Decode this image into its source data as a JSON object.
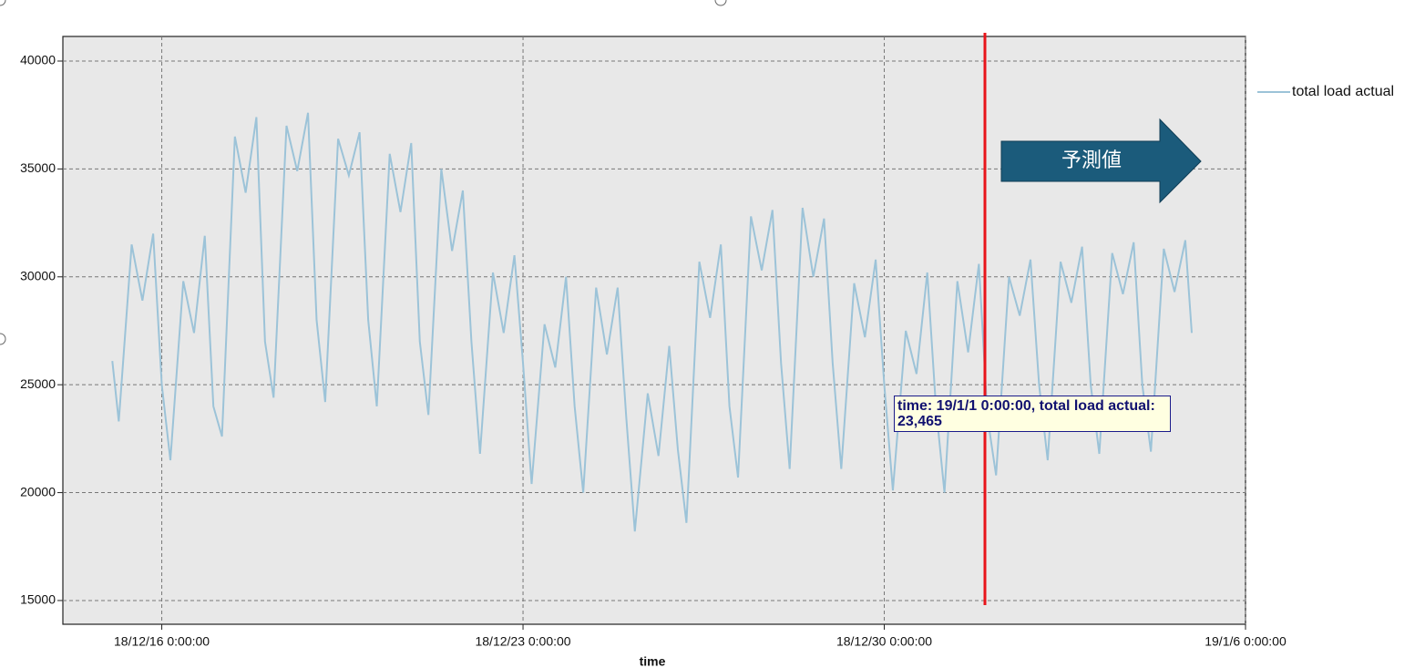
{
  "chart_data": {
    "type": "line",
    "x_label": "time",
    "xlim": [
      "18/12/14 2:00:00",
      "19/1/6 0:00:00"
    ],
    "xticks": [
      "18/12/16 0:00:00",
      "18/12/23 0:00:00",
      "18/12/30 0:00:00",
      "19/1/6 0:00:00"
    ],
    "ylim": [
      13900,
      41140
    ],
    "yticks": [
      15000,
      20000,
      25000,
      30000,
      35000,
      40000
    ],
    "grid": true,
    "legend": "right",
    "series": [
      {
        "name": "total load actual",
        "color": "#9cc3d8",
        "x": [
          "18/12/15 1:00:00",
          "18/12/15 4:00:00",
          "18/12/15 10:00:00",
          "18/12/15 15:00:00",
          "18/12/15 20:00:00",
          "18/12/16 0:00:00",
          "18/12/16 4:00:00",
          "18/12/16 10:00:00",
          "18/12/16 15:00:00",
          "18/12/16 20:00:00",
          "18/12/17 0:00:00",
          "18/12/17 4:00:00",
          "18/12/17 10:00:00",
          "18/12/17 15:00:00",
          "18/12/17 20:00:00",
          "18/12/18 0:00:00",
          "18/12/18 4:00:00",
          "18/12/18 10:00:00",
          "18/12/18 15:00:00",
          "18/12/18 20:00:00",
          "18/12/19 0:00:00",
          "18/12/19 4:00:00",
          "18/12/19 10:00:00",
          "18/12/19 15:00:00",
          "18/12/19 20:00:00",
          "18/12/20 0:00:00",
          "18/12/20 4:00:00",
          "18/12/20 10:00:00",
          "18/12/20 15:00:00",
          "18/12/20 20:00:00",
          "18/12/21 0:00:00",
          "18/12/21 4:00:00",
          "18/12/21 10:00:00",
          "18/12/21 15:00:00",
          "18/12/21 20:00:00",
          "18/12/22 0:00:00",
          "18/12/22 4:00:00",
          "18/12/22 10:00:00",
          "18/12/22 15:00:00",
          "18/12/22 20:00:00",
          "18/12/23 0:00:00",
          "18/12/23 4:00:00",
          "18/12/23 10:00:00",
          "18/12/23 15:00:00",
          "18/12/23 20:00:00",
          "18/12/24 0:00:00",
          "18/12/24 4:00:00",
          "18/12/24 10:00:00",
          "18/12/24 15:00:00",
          "18/12/24 20:00:00",
          "18/12/25 0:00:00",
          "18/12/25 4:00:00",
          "18/12/25 10:00:00",
          "18/12/25 15:00:00",
          "18/12/25 20:00:00",
          "18/12/26 0:00:00",
          "18/12/26 4:00:00",
          "18/12/26 10:00:00",
          "18/12/26 15:00:00",
          "18/12/26 20:00:00",
          "18/12/27 0:00:00",
          "18/12/27 4:00:00",
          "18/12/27 10:00:00",
          "18/12/27 15:00:00",
          "18/12/27 20:00:00",
          "18/12/28 0:00:00",
          "18/12/28 4:00:00",
          "18/12/28 10:00:00",
          "18/12/28 15:00:00",
          "18/12/28 20:00:00",
          "18/12/29 0:00:00",
          "18/12/29 4:00:00",
          "18/12/29 10:00:00",
          "18/12/29 15:00:00",
          "18/12/29 20:00:00",
          "18/12/30 0:00:00",
          "18/12/30 4:00:00",
          "18/12/30 10:00:00",
          "18/12/30 15:00:00",
          "18/12/30 20:00:00",
          "18/12/31 0:00:00",
          "18/12/31 4:00:00",
          "18/12/31 10:00:00",
          "18/12/31 15:00:00",
          "18/12/31 20:00:00",
          "19/1/1 0:00:00",
          "19/1/1 4:00:00",
          "19/1/1 10:00:00",
          "19/1/1 15:00:00",
          "19/1/1 20:00:00",
          "19/1/2 0:00:00",
          "19/1/2 4:00:00",
          "19/1/2 10:00:00",
          "19/1/2 15:00:00",
          "19/1/2 20:00:00",
          "19/1/3 0:00:00",
          "19/1/3 4:00:00",
          "19/1/3 10:00:00",
          "19/1/3 15:00:00",
          "19/1/3 20:00:00",
          "19/1/4 0:00:00",
          "19/1/4 4:00:00",
          "19/1/4 10:00:00",
          "19/1/4 15:00:00",
          "19/1/4 20:00:00",
          "19/1/4 23:00:00"
        ],
        "values": [
          26100,
          23300,
          31500,
          28900,
          32000,
          25000,
          21500,
          29800,
          27400,
          31900,
          24000,
          22600,
          36500,
          33900,
          37400,
          27000,
          24400,
          37000,
          34900,
          37600,
          28000,
          24200,
          36400,
          34700,
          36700,
          28000,
          24000,
          35700,
          33000,
          36200,
          27000,
          23600,
          35000,
          31200,
          34000,
          27000,
          21800,
          30200,
          27400,
          31000,
          26000,
          20400,
          27800,
          25800,
          30000,
          24000,
          20000,
          29500,
          26400,
          29500,
          23500,
          18200,
          24600,
          21700,
          26800,
          22000,
          18600,
          30700,
          28100,
          31500,
          24000,
          20700,
          32800,
          30300,
          33100,
          26000,
          21100,
          33200,
          30000,
          32700,
          26000,
          21100,
          29700,
          27200,
          30800,
          25000,
          20100,
          27500,
          25500,
          30200,
          24000,
          20000,
          29800,
          26500,
          30600,
          23500,
          20800,
          30000,
          28200,
          30800,
          25000,
          21500,
          30700,
          28800,
          31400,
          25000,
          21800,
          31100,
          29200,
          31600,
          25000,
          21900,
          31300,
          29300,
          31700,
          27400
        ]
      }
    ],
    "annotations": {
      "tooltip": "time: 19/1/1 0:00:00, total load actual: 23,465",
      "arrow": "予測値"
    }
  }
}
